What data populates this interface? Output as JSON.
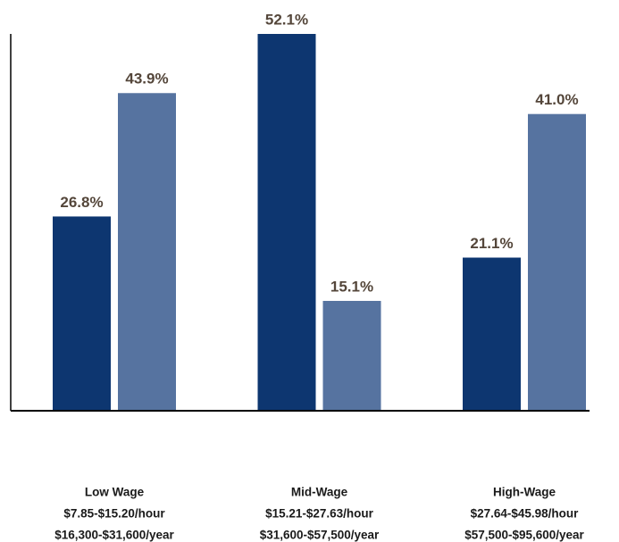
{
  "chart_data": {
    "type": "bar",
    "categories": [
      [
        "Low Wage",
        "$7.85-$15.20/hour",
        "$16,300-$31,600/year"
      ],
      [
        "Mid-Wage",
        "$15.21-$27.63/hour",
        "$31,600-$57,500/year"
      ],
      [
        "High-Wage",
        "$27.64-$45.98/hour",
        "$57,500-$95,600/year"
      ]
    ],
    "series": [
      {
        "color": "#0d3670",
        "values": [
          26.8,
          52.1,
          21.1
        ],
        "value_labels": [
          "26.8%",
          "52.1%",
          "21.1%"
        ]
      },
      {
        "color": "#5673a0",
        "values": [
          43.9,
          15.1,
          41.0
        ],
        "value_labels": [
          "43.9%",
          "15.1%",
          "41.0%"
        ]
      }
    ],
    "ylim": [
      0,
      52.1
    ]
  }
}
